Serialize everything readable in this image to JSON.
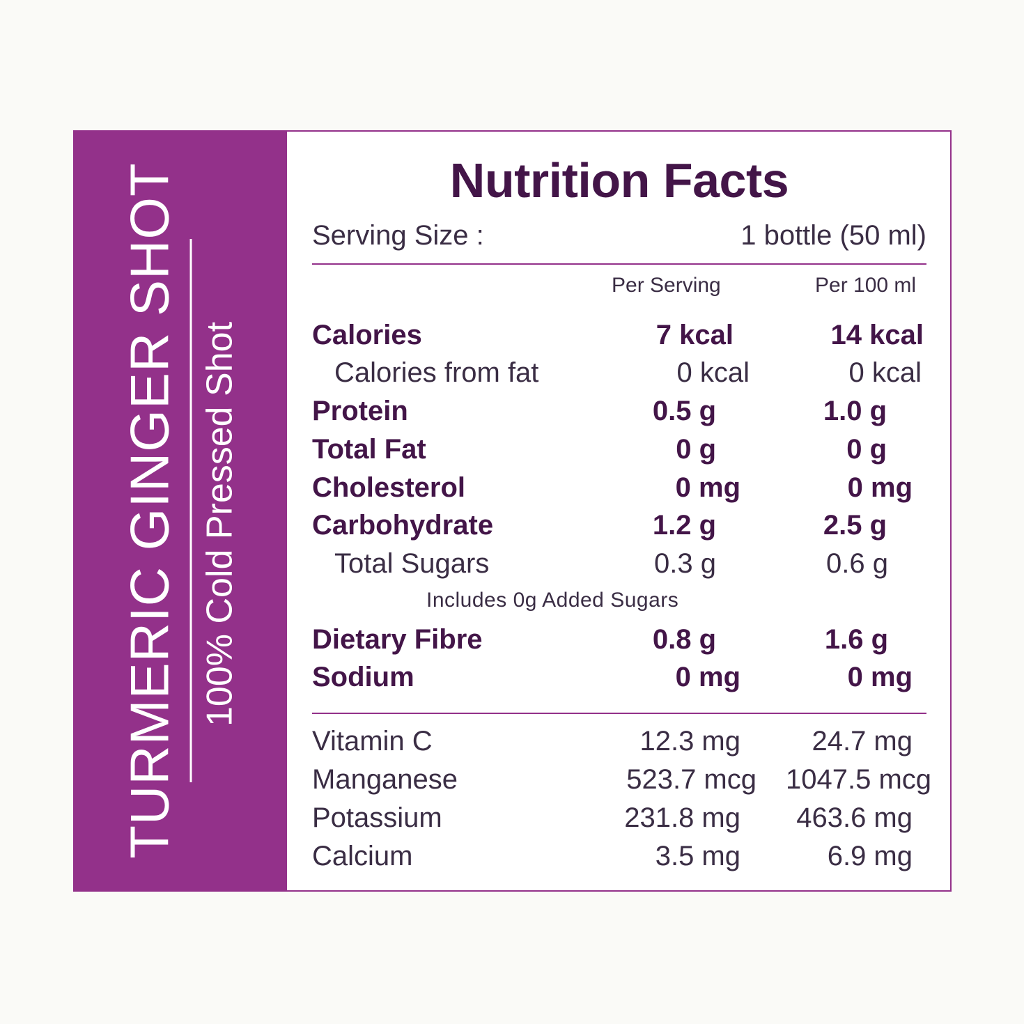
{
  "product": {
    "name": "TURMERIC GINGER SHOT",
    "subtitle": "100% Cold Pressed Shot"
  },
  "label": {
    "title": "Nutrition Facts",
    "serving_size_label": "Serving Size :",
    "serving_size_value": "1 bottle (50 ml)",
    "col_per_serving": "Per Serving",
    "col_per_100": "Per 100 ml",
    "nutrients": [
      {
        "name": "Calories",
        "per_serving": "7 kcal",
        "per_100": "14 kcal"
      },
      {
        "name": "Calories from fat",
        "per_serving": "0 kcal",
        "per_100": "0 kcal"
      },
      {
        "name": "Protein",
        "per_serving": "0.5 g",
        "per_100": "1.0 g"
      },
      {
        "name": "Total Fat",
        "per_serving": "0 g",
        "per_100": "0 g"
      },
      {
        "name": "Cholesterol",
        "per_serving": "0 mg",
        "per_100": "0 mg"
      },
      {
        "name": "Carbohydrate",
        "per_serving": "1.2 g",
        "per_100": "2.5 g"
      },
      {
        "name": "Total Sugars",
        "per_serving": "0.3 g",
        "per_100": "0.6 g"
      },
      {
        "name": "Dietary Fibre",
        "per_serving": "0.8 g",
        "per_100": "1.6 g"
      },
      {
        "name": "Sodium",
        "per_serving": "0 mg",
        "per_100": "0 mg"
      }
    ],
    "added_sugars_note": "Includes 0g Added Sugars",
    "micronutrients": [
      {
        "name": "Vitamin C",
        "per_serving": "12.3 mg",
        "per_100": "24.7 mg"
      },
      {
        "name": "Manganese",
        "per_serving": "523.7 mcg",
        "per_100": "1047.5 mcg"
      },
      {
        "name": "Potassium",
        "per_serving": "231.8 mg",
        "per_100": "463.6 mg"
      },
      {
        "name": "Calcium",
        "per_serving": "3.5 mg",
        "per_100": "6.9 mg"
      }
    ]
  },
  "colors": {
    "brand_purple": "#93318a",
    "text_dark_purple": "#431548",
    "background": "#fafaf7"
  }
}
